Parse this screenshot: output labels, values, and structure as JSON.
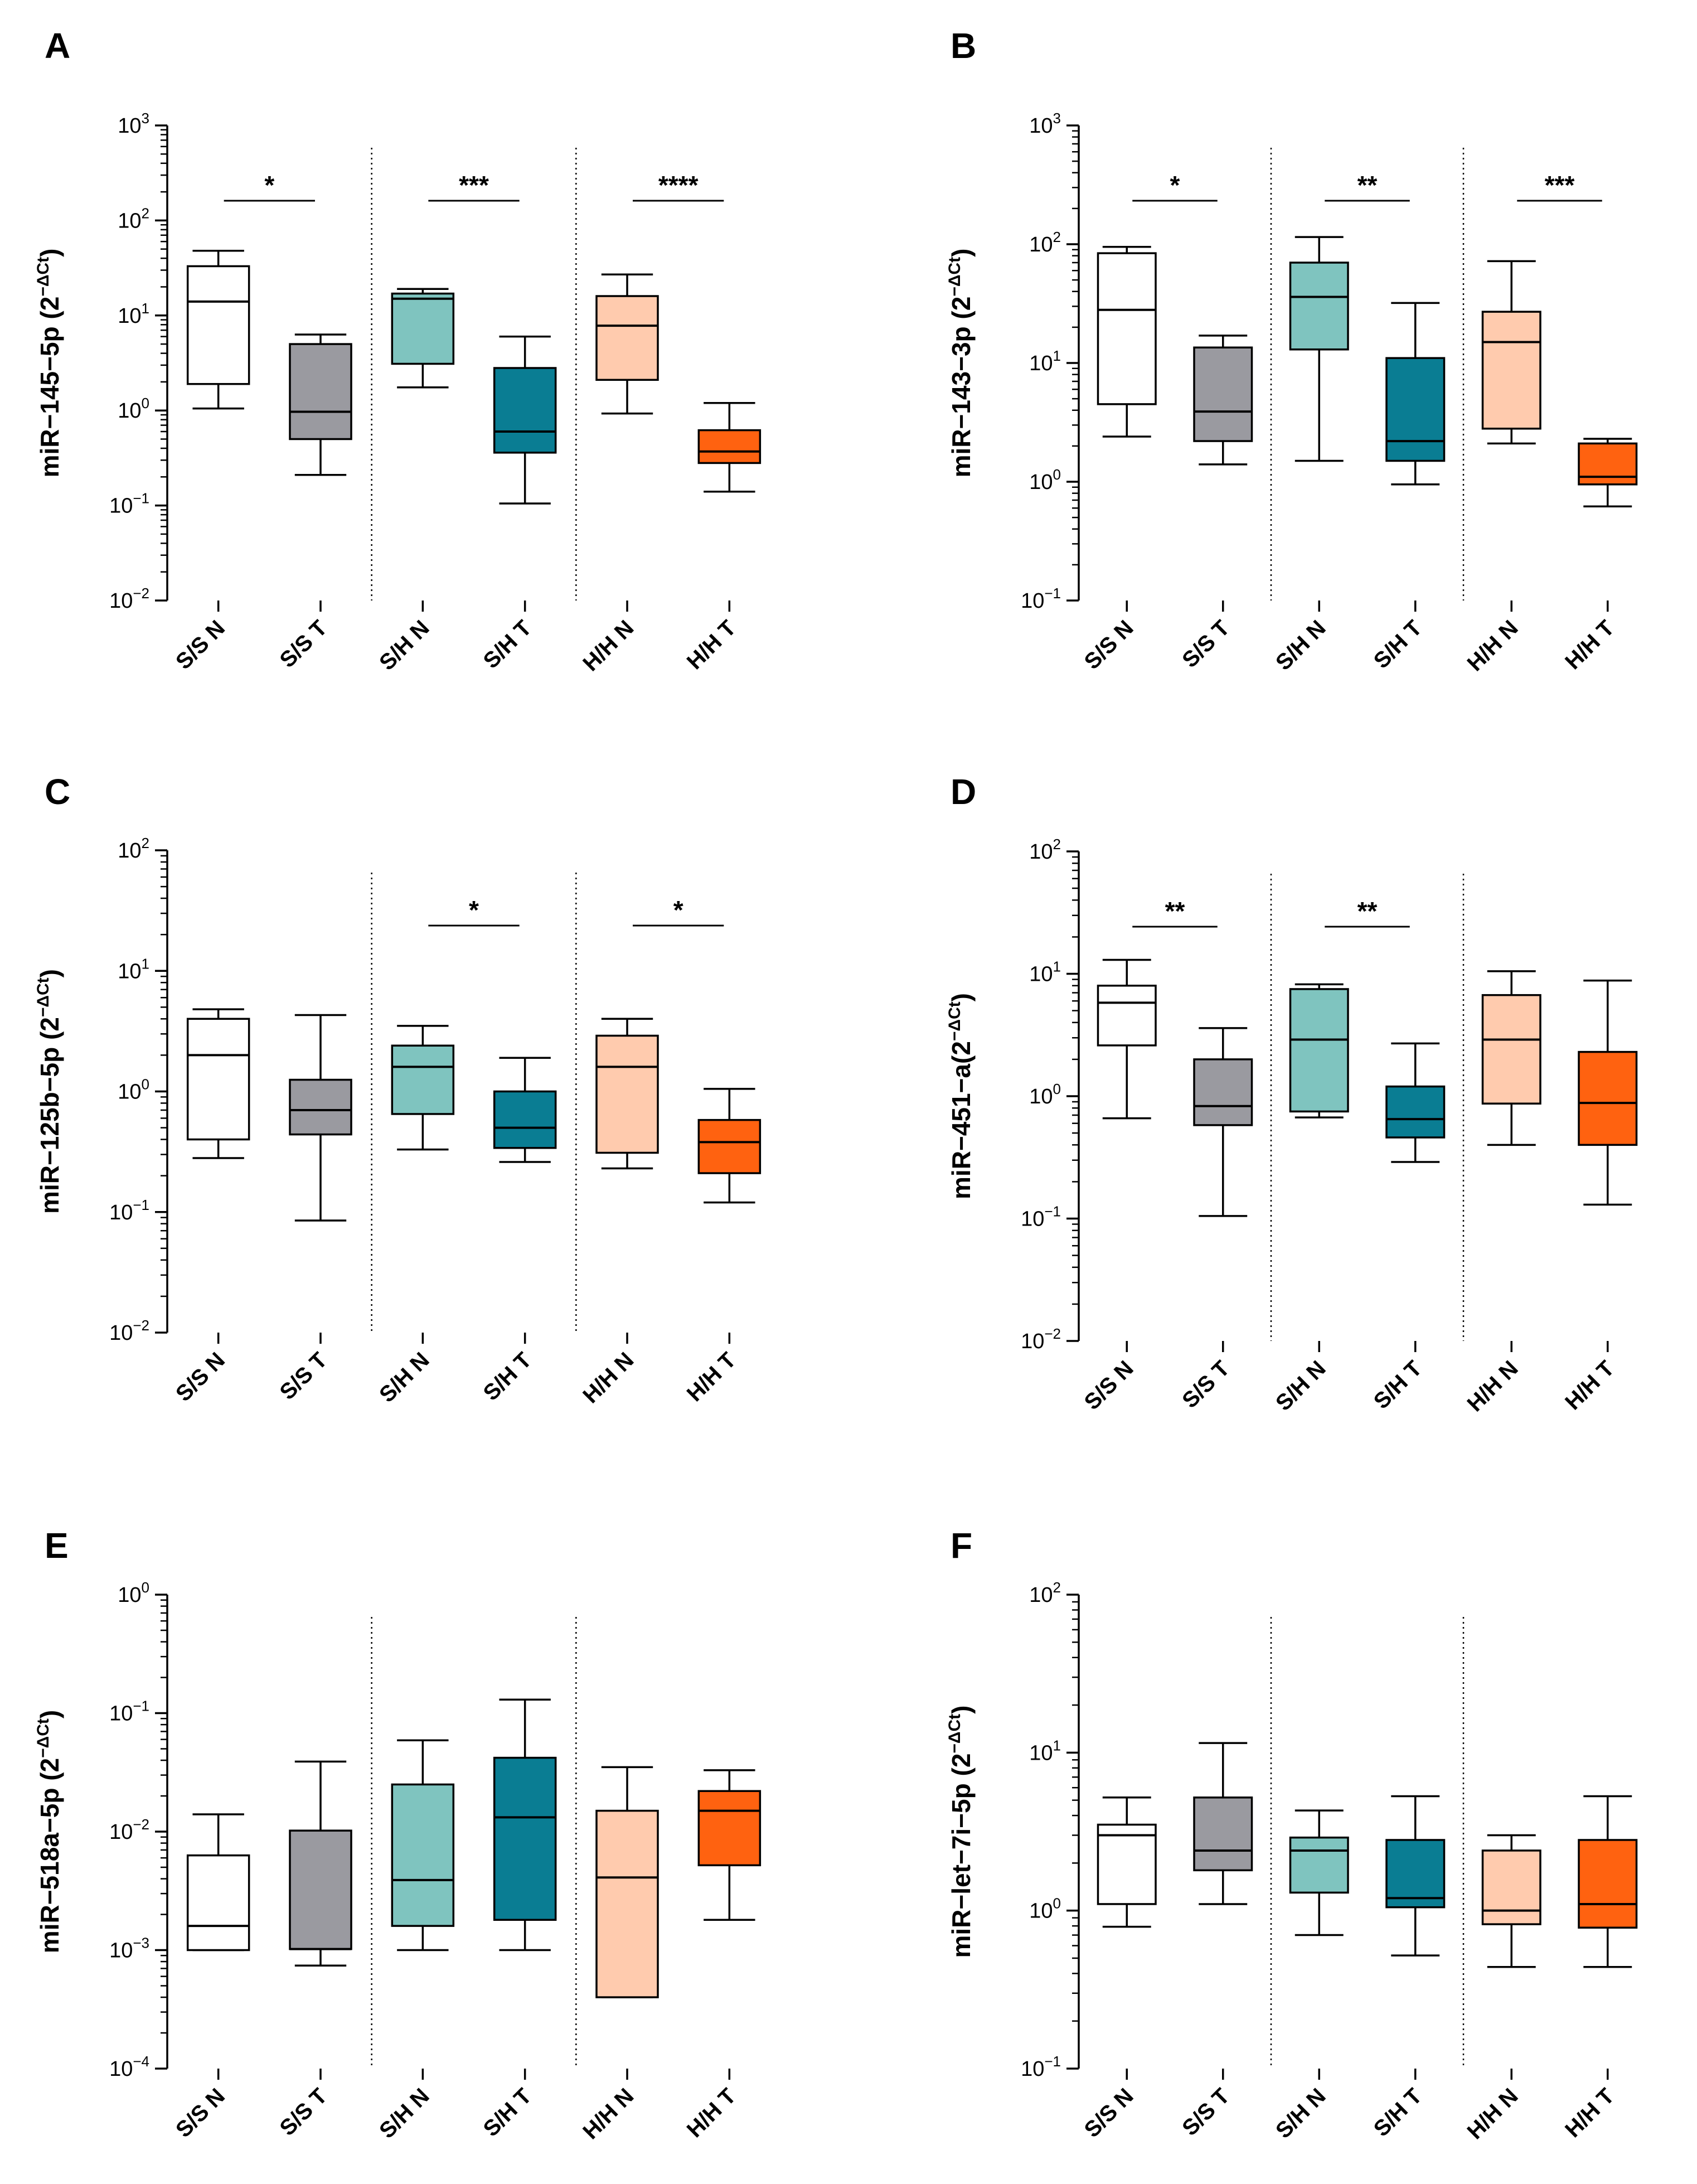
{
  "figure": {
    "panels": [
      {
        "label": "A",
        "ylabel_main": "miR−145−5p (2",
        "ylabel_sup": "−ΔCt",
        "ylabel_close": ")",
        "chart_data": {
          "type": "box",
          "yscale": "log10",
          "ylim": [
            0.01,
            1000
          ],
          "categories": [
            "S/S N",
            "S/S T",
            "S/H N",
            "S/H T",
            "H/H N",
            "H/H T"
          ],
          "boxes": [
            {
              "min": 1.05,
              "q1": 1.9,
              "median": 14,
              "q3": 33,
              "max": 48
            },
            {
              "min": 0.21,
              "q1": 0.5,
              "median": 0.97,
              "q3": 5.0,
              "max": 6.3
            },
            {
              "min": 1.75,
              "q1": 3.1,
              "median": 15,
              "q3": 17,
              "max": 19
            },
            {
              "min": 0.105,
              "q1": 0.36,
              "median": 0.6,
              "q3": 2.8,
              "max": 6.0
            },
            {
              "min": 0.93,
              "q1": 2.1,
              "median": 7.8,
              "q3": 16,
              "max": 27
            },
            {
              "min": 0.14,
              "q1": 0.28,
              "median": 0.37,
              "q3": 0.62,
              "max": 1.2
            }
          ],
          "significance": [
            {
              "from": 0,
              "to": 1,
              "label": "*"
            },
            {
              "from": 2,
              "to": 3,
              "label": "***"
            },
            {
              "from": 4,
              "to": 5,
              "label": "****"
            }
          ]
        }
      },
      {
        "label": "B",
        "ylabel_main": "miR−143−3p (2",
        "ylabel_sup": "−ΔCt",
        "ylabel_close": ")",
        "chart_data": {
          "type": "box",
          "yscale": "log10",
          "ylim": [
            0.1,
            1000
          ],
          "categories": [
            "S/S N",
            "S/S T",
            "S/H N",
            "S/H T",
            "H/H N",
            "H/H T"
          ],
          "boxes": [
            {
              "min": 2.4,
              "q1": 4.5,
              "median": 28,
              "q3": 84,
              "max": 95
            },
            {
              "min": 1.4,
              "q1": 2.2,
              "median": 3.9,
              "q3": 13.5,
              "max": 17
            },
            {
              "min": 1.5,
              "q1": 13,
              "median": 36,
              "q3": 70,
              "max": 115
            },
            {
              "min": 0.95,
              "q1": 1.5,
              "median": 2.2,
              "q3": 11,
              "max": 32
            },
            {
              "min": 2.1,
              "q1": 2.8,
              "median": 15,
              "q3": 27,
              "max": 72
            },
            {
              "min": 0.62,
              "q1": 0.95,
              "median": 1.1,
              "q3": 2.1,
              "max": 2.3
            }
          ],
          "significance": [
            {
              "from": 0,
              "to": 1,
              "label": "*"
            },
            {
              "from": 2,
              "to": 3,
              "label": "**"
            },
            {
              "from": 4,
              "to": 5,
              "label": "***"
            }
          ]
        }
      },
      {
        "label": "C",
        "ylabel_main": "miR−125b−5p (2",
        "ylabel_sup": "−ΔCt",
        "ylabel_close": ")",
        "chart_data": {
          "type": "box",
          "yscale": "log10",
          "ylim": [
            0.01,
            100
          ],
          "categories": [
            "S/S N",
            "S/S T",
            "S/H N",
            "S/H T",
            "H/H N",
            "H/H T"
          ],
          "boxes": [
            {
              "min": 0.28,
              "q1": 0.4,
              "median": 2.0,
              "q3": 4.0,
              "max": 4.8
            },
            {
              "min": 0.085,
              "q1": 0.44,
              "median": 0.7,
              "q3": 1.25,
              "max": 4.3
            },
            {
              "min": 0.33,
              "q1": 0.65,
              "median": 1.6,
              "q3": 2.4,
              "max": 3.5
            },
            {
              "min": 0.26,
              "q1": 0.34,
              "median": 0.5,
              "q3": 1.0,
              "max": 1.9
            },
            {
              "min": 0.23,
              "q1": 0.31,
              "median": 1.6,
              "q3": 2.9,
              "max": 4.0
            },
            {
              "min": 0.12,
              "q1": 0.21,
              "median": 0.38,
              "q3": 0.58,
              "max": 1.05
            }
          ],
          "significance": [
            {
              "from": 2,
              "to": 3,
              "label": "*"
            },
            {
              "from": 4,
              "to": 5,
              "label": "*"
            }
          ]
        }
      },
      {
        "label": "D",
        "ylabel_main": "miR−451−a(2",
        "ylabel_sup": "−ΔCt",
        "ylabel_close": ")",
        "chart_data": {
          "type": "box",
          "yscale": "log10",
          "ylim": [
            0.01,
            100
          ],
          "categories": [
            "S/S N",
            "S/S T",
            "S/H N",
            "S/H T",
            "H/H N",
            "H/H T"
          ],
          "boxes": [
            {
              "min": 0.66,
              "q1": 2.6,
              "median": 5.8,
              "q3": 8.0,
              "max": 13
            },
            {
              "min": 0.105,
              "q1": 0.58,
              "median": 0.83,
              "q3": 2.0,
              "max": 3.6
            },
            {
              "min": 0.67,
              "q1": 0.75,
              "median": 2.9,
              "q3": 7.5,
              "max": 8.2
            },
            {
              "min": 0.29,
              "q1": 0.46,
              "median": 0.65,
              "q3": 1.2,
              "max": 2.7
            },
            {
              "min": 0.4,
              "q1": 0.87,
              "median": 2.9,
              "q3": 6.7,
              "max": 10.5
            },
            {
              "min": 0.13,
              "q1": 0.4,
              "median": 0.88,
              "q3": 2.3,
              "max": 8.8
            }
          ],
          "significance": [
            {
              "from": 0,
              "to": 1,
              "label": "**"
            },
            {
              "from": 2,
              "to": 3,
              "label": "**"
            }
          ]
        }
      },
      {
        "label": "E",
        "ylabel_main": "miR−518a−5p (2",
        "ylabel_sup": "−ΔCt",
        "ylabel_close": ")",
        "chart_data": {
          "type": "box",
          "yscale": "log10",
          "ylim": [
            0.0001,
            1
          ],
          "categories": [
            "S/S N",
            "S/S T",
            "S/H N",
            "S/H T",
            "H/H N",
            "H/H T"
          ],
          "boxes": [
            {
              "min": 0.001,
              "q1": 0.001,
              "median": 0.0016,
              "q3": 0.0063,
              "max": 0.014
            },
            {
              "min": 0.00074,
              "q1": 0.00102,
              "median": 0.00102,
              "q3": 0.0102,
              "max": 0.039
            },
            {
              "min": 0.001,
              "q1": 0.0016,
              "median": 0.0039,
              "q3": 0.025,
              "max": 0.059
            },
            {
              "min": 0.001,
              "q1": 0.0018,
              "median": 0.0132,
              "q3": 0.042,
              "max": 0.13
            },
            {
              "min": 0.0004,
              "q1": 0.0004,
              "median": 0.0041,
              "q3": 0.015,
              "max": 0.035
            },
            {
              "min": 0.0018,
              "q1": 0.0052,
              "median": 0.015,
              "q3": 0.022,
              "max": 0.033
            }
          ],
          "significance": []
        }
      },
      {
        "label": "F",
        "ylabel_main": "miR−let−7i−5p (2",
        "ylabel_sup": "−ΔCt",
        "ylabel_close": ")",
        "chart_data": {
          "type": "box",
          "yscale": "log10",
          "ylim": [
            0.1,
            100
          ],
          "categories": [
            "S/S N",
            "S/S T",
            "S/H N",
            "S/H T",
            "H/H N",
            "H/H T"
          ],
          "boxes": [
            {
              "min": 0.79,
              "q1": 1.1,
              "median": 3.0,
              "q3": 3.5,
              "max": 5.2
            },
            {
              "min": 1.1,
              "q1": 1.8,
              "median": 2.4,
              "q3": 5.2,
              "max": 11.5
            },
            {
              "min": 0.7,
              "q1": 1.3,
              "median": 2.4,
              "q3": 2.9,
              "max": 4.3
            },
            {
              "min": 0.52,
              "q1": 1.05,
              "median": 1.2,
              "q3": 2.8,
              "max": 5.3
            },
            {
              "min": 0.44,
              "q1": 0.82,
              "median": 1.0,
              "q3": 2.4,
              "max": 3.0
            },
            {
              "min": 0.44,
              "q1": 0.78,
              "median": 1.1,
              "q3": 2.8,
              "max": 5.3
            }
          ],
          "significance": []
        }
      }
    ],
    "colors": {
      "fills": [
        "#ffffff",
        "#9a9aa0",
        "#7fc4bf",
        "#0a7d93",
        "#ffcbae",
        "#ff6210"
      ],
      "stroke": "#000000"
    }
  }
}
